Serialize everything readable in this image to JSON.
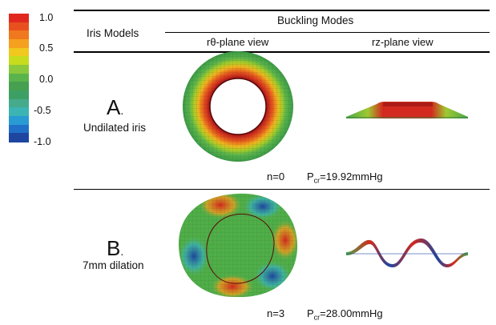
{
  "colorbar": {
    "ticks": [
      "1.0",
      "0.5",
      "0.0",
      "-0.5",
      "-1.0"
    ],
    "colors": [
      "#e0281e",
      "#e8501e",
      "#f0781e",
      "#f5a01e",
      "#f0c81e",
      "#c8dc1e",
      "#8cc83c",
      "#5ab44b",
      "#46a050",
      "#3ca064",
      "#46aa8c",
      "#3cb4b4",
      "#289bd2",
      "#2070c8",
      "#1e46a0"
    ]
  },
  "header": {
    "col1": "Iris Models",
    "group": "Buckling Modes",
    "view1": "rθ-plane view",
    "view2": "rz-plane view"
  },
  "rows": [
    {
      "letter": "A",
      "name": "Undilated iris",
      "mode": "n=0",
      "pressure_sym": "P",
      "pressure_sub": "cr",
      "pressure_val": "=19.92mmHg"
    },
    {
      "letter": "B",
      "name": "7mm dilation",
      "mode": "n=3",
      "pressure_sym": "P",
      "pressure_sub": "cr",
      "pressure_val": "=28.00mmHg"
    }
  ]
}
